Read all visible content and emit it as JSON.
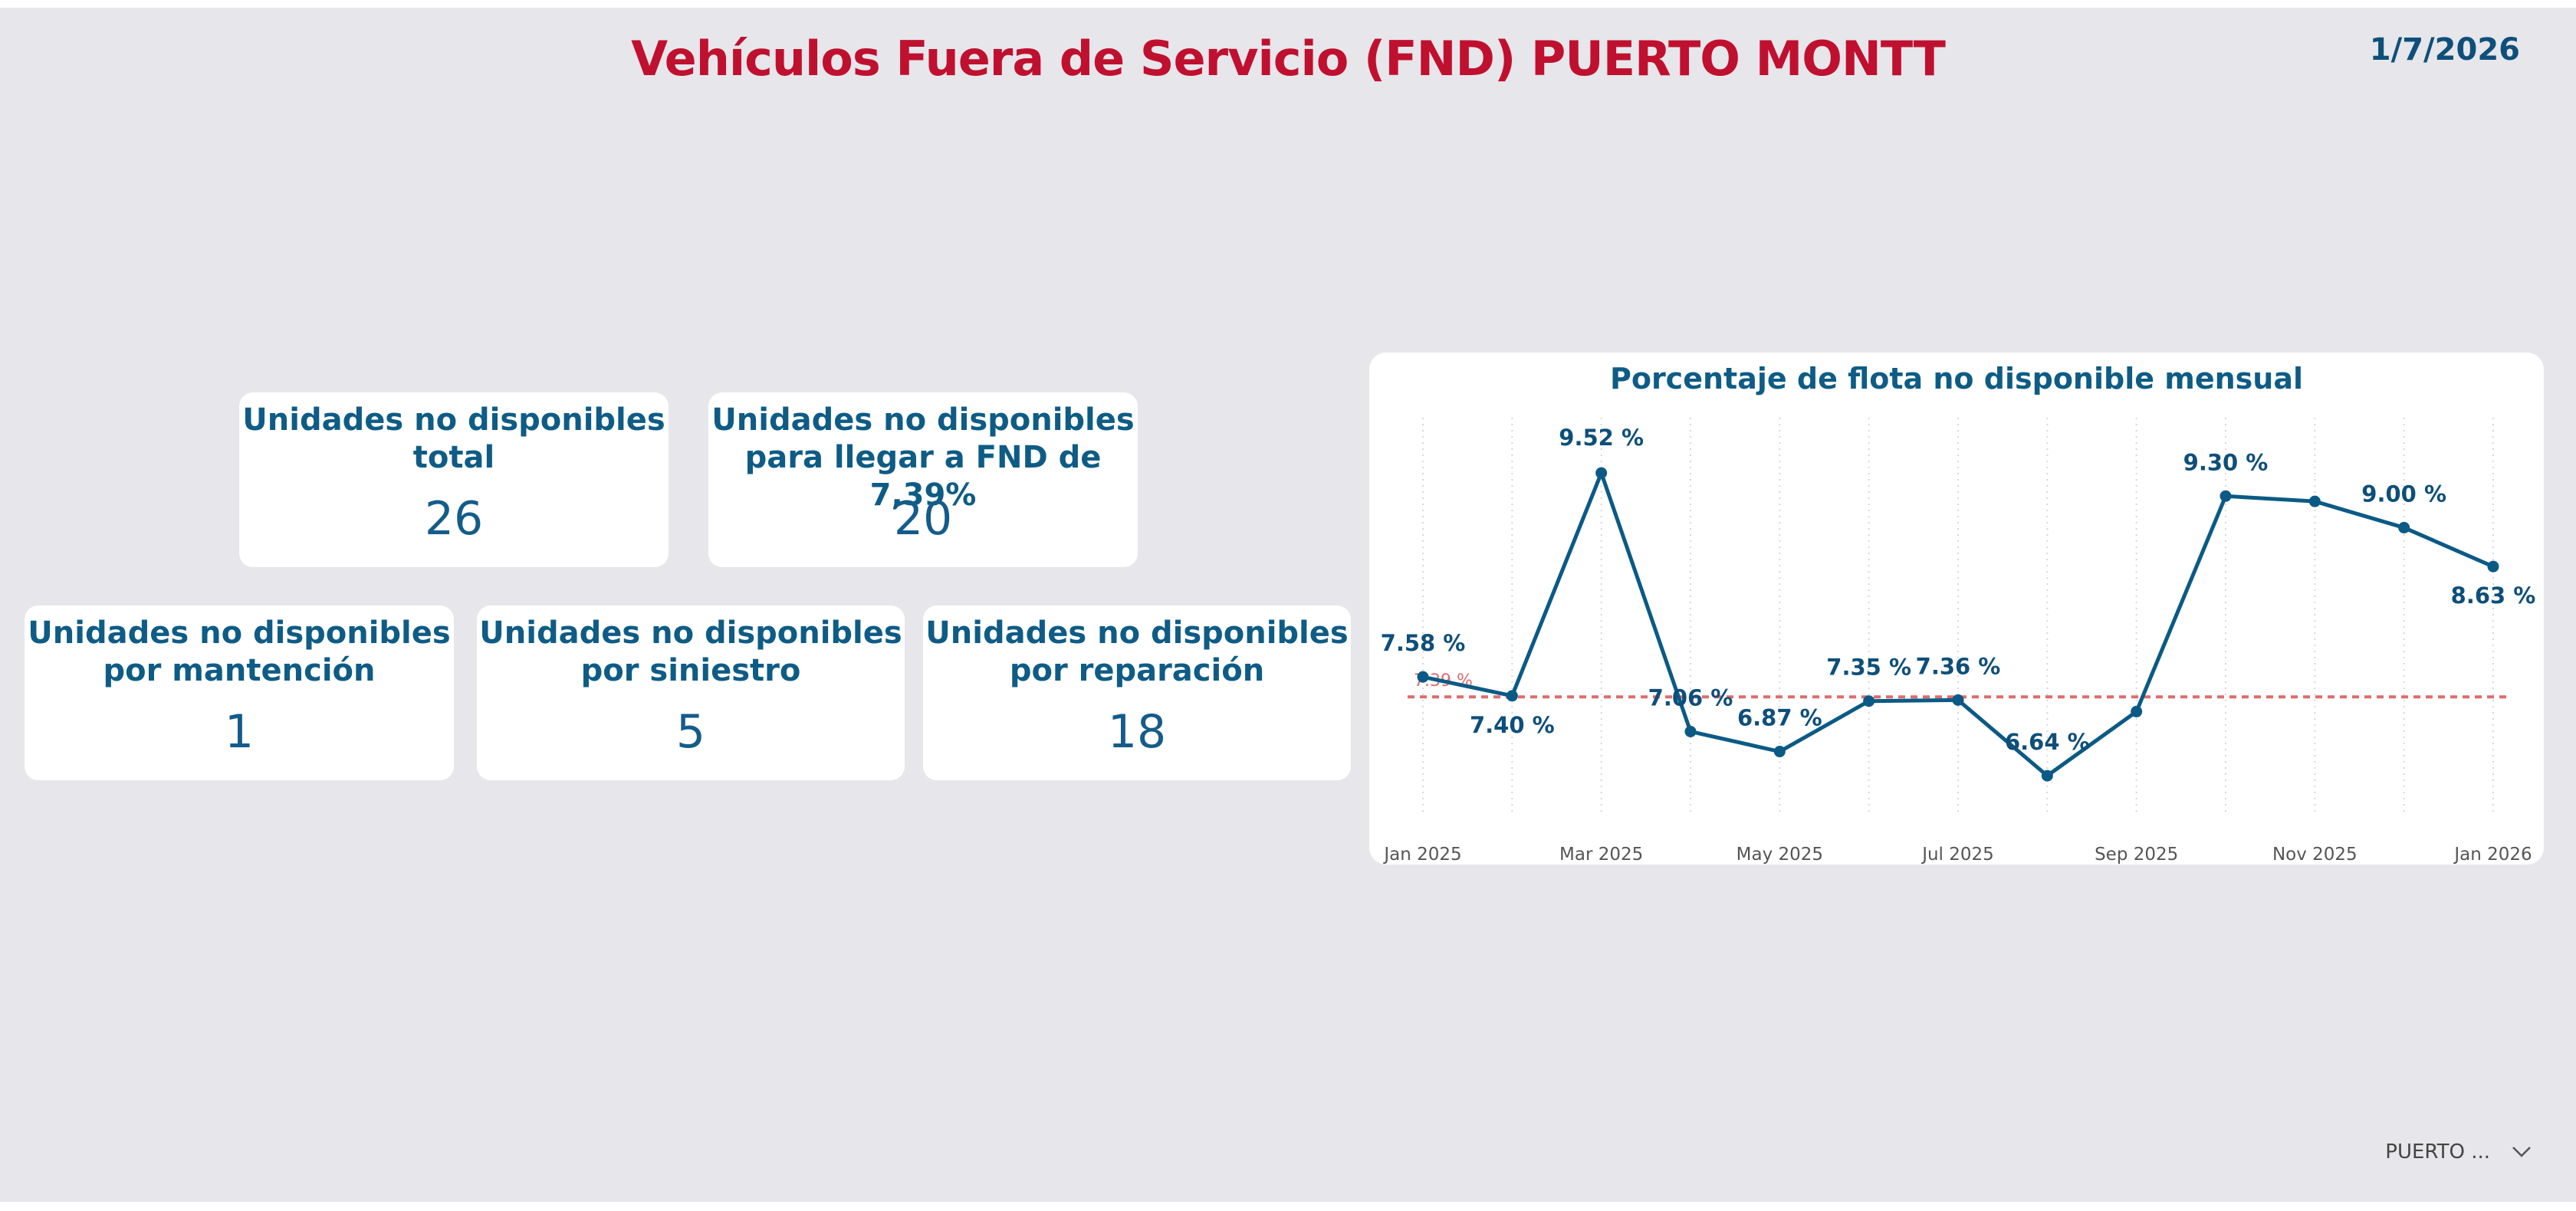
{
  "header": {
    "title": "Vehículos Fuera de Servicio (FND) PUERTO MONTT",
    "date": "1/7/2026"
  },
  "cards": [
    {
      "title_line1": "Unidades no disponibles",
      "title_line2": "total",
      "value": "26"
    },
    {
      "title_line1": "Unidades no disponibles",
      "title_line2": "para llegar a FND de 7,39%",
      "value": "20"
    },
    {
      "title_line1": "Unidades no disponibles",
      "title_line2": "por mantención",
      "value": "1"
    },
    {
      "title_line1": "Unidades no disponibles",
      "title_line2": "por siniestro",
      "value": "5"
    },
    {
      "title_line1": "Unidades no disponibles",
      "title_line2": "por reparación",
      "value": "18"
    }
  ],
  "slicer": {
    "selected": "PUERTO ...",
    "icon": "chevron-down-icon"
  },
  "colors": {
    "title": "#c0102f",
    "accent": "#0e5c86",
    "line": "#0b5a85",
    "target": "#e06b6b"
  },
  "chart_data": {
    "type": "line",
    "title": "Porcentaje de flota no disponible mensual",
    "x": [
      "Jan 2025",
      "Feb 2025",
      "Mar 2025",
      "Apr 2025",
      "May 2025",
      "Jun 2025",
      "Jul 2025",
      "Aug 2025",
      "Sep 2025",
      "Oct 2025",
      "Nov 2025",
      "Dec 2025",
      "Jan 2026"
    ],
    "x_tick_labels": [
      "Jan 2025",
      "Mar 2025",
      "May 2025",
      "Jul 2025",
      "Sep 2025",
      "Nov 2025",
      "Jan 2026"
    ],
    "series": [
      {
        "values": [
          7.58,
          7.4,
          9.52,
          7.06,
          6.87,
          7.35,
          7.36,
          6.64,
          7.25,
          9.3,
          9.25,
          9.0,
          8.63
        ]
      }
    ],
    "data_labels": [
      "7.58 %",
      "7.40 %",
      "9.52 %",
      "7.06 %",
      "6.87 %",
      "7.35 %",
      "7.36 %",
      "6.64 %",
      "",
      "9.30 %",
      "",
      "9.00 %",
      "8.63 %"
    ],
    "target_line": {
      "value": 7.39,
      "label": "7.39 %"
    },
    "ylim": [
      6.4,
      9.9
    ],
    "grid": "vertical dotted",
    "legend": "none"
  }
}
